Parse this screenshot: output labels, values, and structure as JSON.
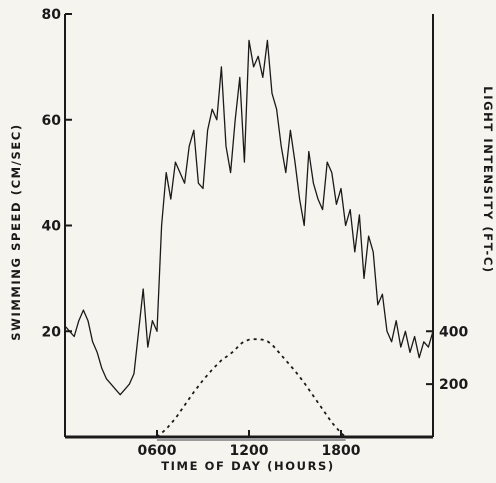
{
  "chart_data": {
    "type": "line",
    "xlabel": "TIME OF DAY (HOURS)",
    "ylabel": "SWIMMING SPEED (CM/SEC)",
    "y2label": "LIGHT INTENSITY (FT-C)",
    "xlim": [
      0,
      2400
    ],
    "ylim": [
      0,
      80
    ],
    "y2lim": [
      0,
      1600
    ],
    "x_ticks": [
      "0600",
      "1200",
      "1800"
    ],
    "y_ticks": [
      "20",
      "40",
      "60",
      "80"
    ],
    "y2_ticks": [
      "200",
      "400"
    ],
    "x_tick_values": [
      600,
      1200,
      1800
    ],
    "y_tick_values": [
      20,
      40,
      60,
      80
    ],
    "y2_tick_values": [
      200,
      400
    ],
    "series": [
      {
        "axis": "left",
        "style": "solid",
        "x": [
          0,
          30,
          60,
          90,
          120,
          150,
          180,
          210,
          240,
          270,
          300,
          330,
          360,
          390,
          420,
          450,
          480,
          510,
          540,
          570,
          600,
          630,
          660,
          690,
          720,
          750,
          780,
          810,
          840,
          870,
          900,
          930,
          960,
          990,
          1020,
          1050,
          1080,
          1110,
          1140,
          1170,
          1200,
          1230,
          1260,
          1290,
          1320,
          1350,
          1380,
          1410,
          1440,
          1470,
          1500,
          1530,
          1560,
          1590,
          1620,
          1650,
          1680,
          1710,
          1740,
          1770,
          1800,
          1830,
          1860,
          1890,
          1920,
          1950,
          1980,
          2010,
          2040,
          2070,
          2100,
          2130,
          2160,
          2190,
          2220,
          2250,
          2280,
          2310,
          2340,
          2370,
          2400
        ],
        "values": [
          21,
          20,
          19,
          22,
          24,
          22,
          18,
          16,
          13,
          11,
          10,
          9,
          8,
          9,
          10,
          12,
          20,
          28,
          17,
          22,
          20,
          40,
          50,
          45,
          52,
          50,
          48,
          55,
          58,
          48,
          47,
          58,
          62,
          60,
          70,
          55,
          50,
          60,
          68,
          52,
          75,
          70,
          72,
          68,
          75,
          65,
          62,
          55,
          50,
          58,
          52,
          45,
          40,
          54,
          48,
          45,
          43,
          52,
          50,
          44,
          47,
          40,
          43,
          35,
          42,
          30,
          38,
          35,
          25,
          27,
          20,
          18,
          22,
          17,
          20,
          16,
          19,
          15,
          18,
          17,
          20
        ]
      },
      {
        "axis": "right",
        "style": "dotted",
        "x": [
          600,
          660,
          720,
          780,
          840,
          900,
          960,
          1020,
          1080,
          1110,
          1140,
          1170,
          1200,
          1230,
          1260,
          1290,
          1320,
          1350,
          1380,
          1410,
          1440,
          1500,
          1560,
          1620,
          1680,
          1740,
          1800,
          1830
        ],
        "values": [
          0,
          30,
          70,
          120,
          170,
          215,
          255,
          290,
          315,
          330,
          350,
          362,
          368,
          370,
          370,
          368,
          362,
          350,
          330,
          310,
          290,
          250,
          205,
          155,
          105,
          55,
          15,
          0
        ]
      }
    ]
  }
}
